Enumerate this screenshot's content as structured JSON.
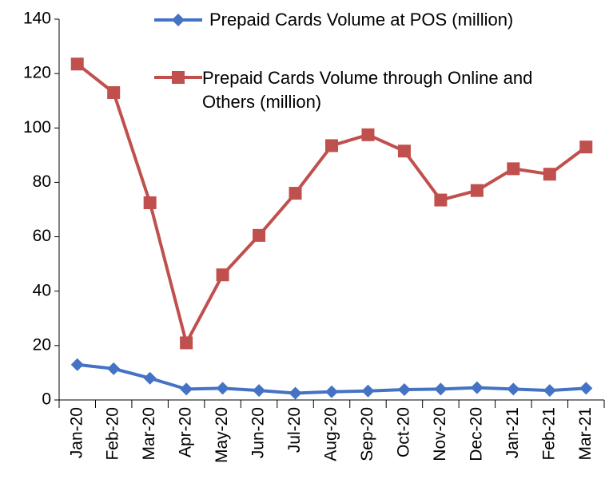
{
  "chart_data": {
    "type": "line",
    "categories": [
      "Jan-20",
      "Feb-20",
      "Mar-20",
      "Apr-20",
      "May-20",
      "Jun-20",
      "Jul-20",
      "Aug-20",
      "Sep-20",
      "Oct-20",
      "Nov-20",
      "Dec-20",
      "Jan-21",
      "Feb-21",
      "Mar-21"
    ],
    "series": [
      {
        "name": "Prepaid Cards Volume at POS (million)",
        "color": "#4472c4",
        "marker": "diamond",
        "values": [
          13,
          11.5,
          8,
          4,
          4.3,
          3.5,
          2.5,
          3,
          3.3,
          3.8,
          4,
          4.5,
          4,
          3.5,
          4.3
        ]
      },
      {
        "name": "Prepaid Cards Volume through Online and Others (million)",
        "color": "#c0504d",
        "marker": "square",
        "values": [
          123.5,
          113,
          72.5,
          21,
          46,
          60.5,
          76,
          93.5,
          97.5,
          91.5,
          73.5,
          77,
          85,
          83,
          93
        ]
      }
    ],
    "ylim": [
      0,
      140
    ],
    "yticks": [
      0,
      20,
      40,
      60,
      80,
      100,
      120,
      140
    ],
    "grid": false,
    "legend": "upper right"
  }
}
